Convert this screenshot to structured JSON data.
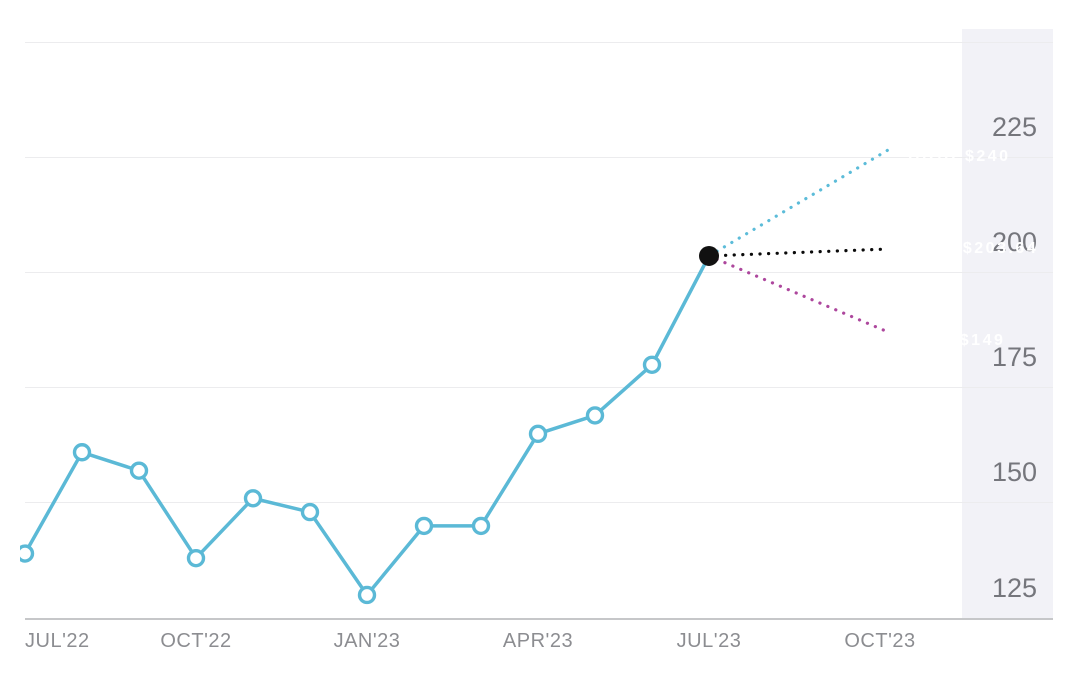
{
  "chart_data": {
    "type": "line",
    "title": "",
    "xlabel": "",
    "ylabel": "",
    "x": [
      "JUL'22",
      "AUG'22",
      "SEP'22",
      "OCT'22",
      "NOV'22",
      "DEC'22",
      "JAN'23",
      "FEB'23",
      "MAR'23",
      "APR'23",
      "MAY'23",
      "JUN'23",
      "JUL'23"
    ],
    "values": [
      139,
      161,
      157,
      138,
      151,
      148,
      130,
      145,
      145,
      165,
      169,
      180,
      203.64
    ],
    "x_tick_labels": [
      "JUL'22",
      "OCT'22",
      "JAN'23",
      "APR'23",
      "JUL'23",
      "OCT'23"
    ],
    "y_ticks": [
      125,
      150,
      175,
      200,
      225
    ],
    "y_gridlines": [
      150,
      175,
      200,
      225,
      250
    ],
    "ylim": [
      125,
      250
    ],
    "grid": true,
    "legend_position": "none",
    "series_color": "#5bb9d6",
    "last_point_color": "#111111",
    "band_color": "#f2f2f7",
    "callouts": [
      {
        "id": "high",
        "label": "HIGH $240",
        "value": 240,
        "color": "#5cbcd9"
      },
      {
        "id": "avg",
        "label": "AVG. $203.64",
        "value": 203.64,
        "color": "#0a0a0a"
      },
      {
        "id": "low",
        "label": "LOW $149",
        "value": 149,
        "color": "#ad479d"
      }
    ]
  }
}
